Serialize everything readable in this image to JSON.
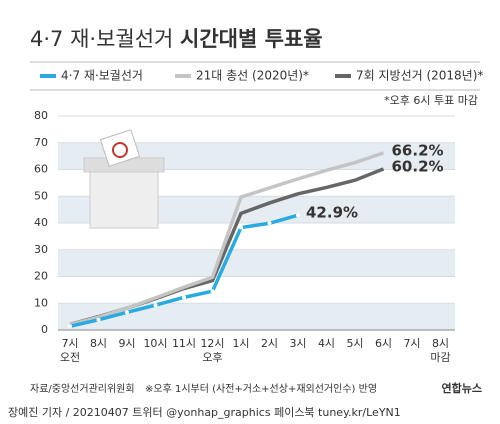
{
  "chart_data": {
    "type": "line",
    "title": [
      "4·7 재·보궐선거",
      "시간대별 투표율"
    ],
    "note": "*오후 6시 투표 마감",
    "categories": [
      "7시\n오전",
      "8시",
      "9시",
      "10시",
      "11시",
      "12시\n오후",
      "1시",
      "2시",
      "3시",
      "4시",
      "5시",
      "6시",
      "7시",
      "8시\n마감"
    ],
    "series": [
      {
        "name": "4·7 재·보궐선거",
        "color": "#29abe2",
        "markers": true,
        "values": [
          1.4,
          3.8,
          6.6,
          9.3,
          12.2,
          14.5,
          38.3,
          39.9,
          42.9,
          null,
          null,
          null,
          null,
          null
        ],
        "value_labels": [
          null,
          null,
          null,
          null,
          null,
          null,
          null,
          null,
          "42.9%",
          null,
          null,
          null,
          null,
          null
        ]
      },
      {
        "name": "21대 총선 (2020년)*",
        "color": "#c4c4c4",
        "markers": false,
        "values": [
          2.0,
          4.8,
          8.2,
          12.0,
          16.0,
          19.7,
          49.7,
          53.1,
          56.5,
          59.7,
          62.6,
          66.2,
          null,
          null
        ],
        "value_labels": [
          null,
          null,
          null,
          null,
          null,
          null,
          null,
          null,
          null,
          null,
          null,
          "66.2%",
          null,
          null
        ]
      },
      {
        "name": "7회 지방선거 (2018년)*",
        "color": "#666666",
        "markers": false,
        "values": [
          2.1,
          5.0,
          8.2,
          11.7,
          15.5,
          18.5,
          43.6,
          47.5,
          50.9,
          53.3,
          56.0,
          60.2,
          null,
          null
        ],
        "value_labels": [
          null,
          null,
          null,
          null,
          null,
          null,
          null,
          null,
          null,
          null,
          null,
          "60.2%",
          null,
          null
        ]
      }
    ],
    "ylim": [
      0,
      80
    ],
    "yticks": [
      0,
      10,
      20,
      30,
      40,
      50,
      60,
      70,
      80
    ],
    "grid": "bands",
    "source": "자료/중앙선거관리위원회",
    "footnote": "※오후 1시부터 (사전+거소+선상+재외선거인수) 반영",
    "credit": "장예진 기자 / 20210407 트위터 @yonhap_graphics  페이스북 tuney.kr/LeYN1",
    "logo": "연합뉴스"
  }
}
